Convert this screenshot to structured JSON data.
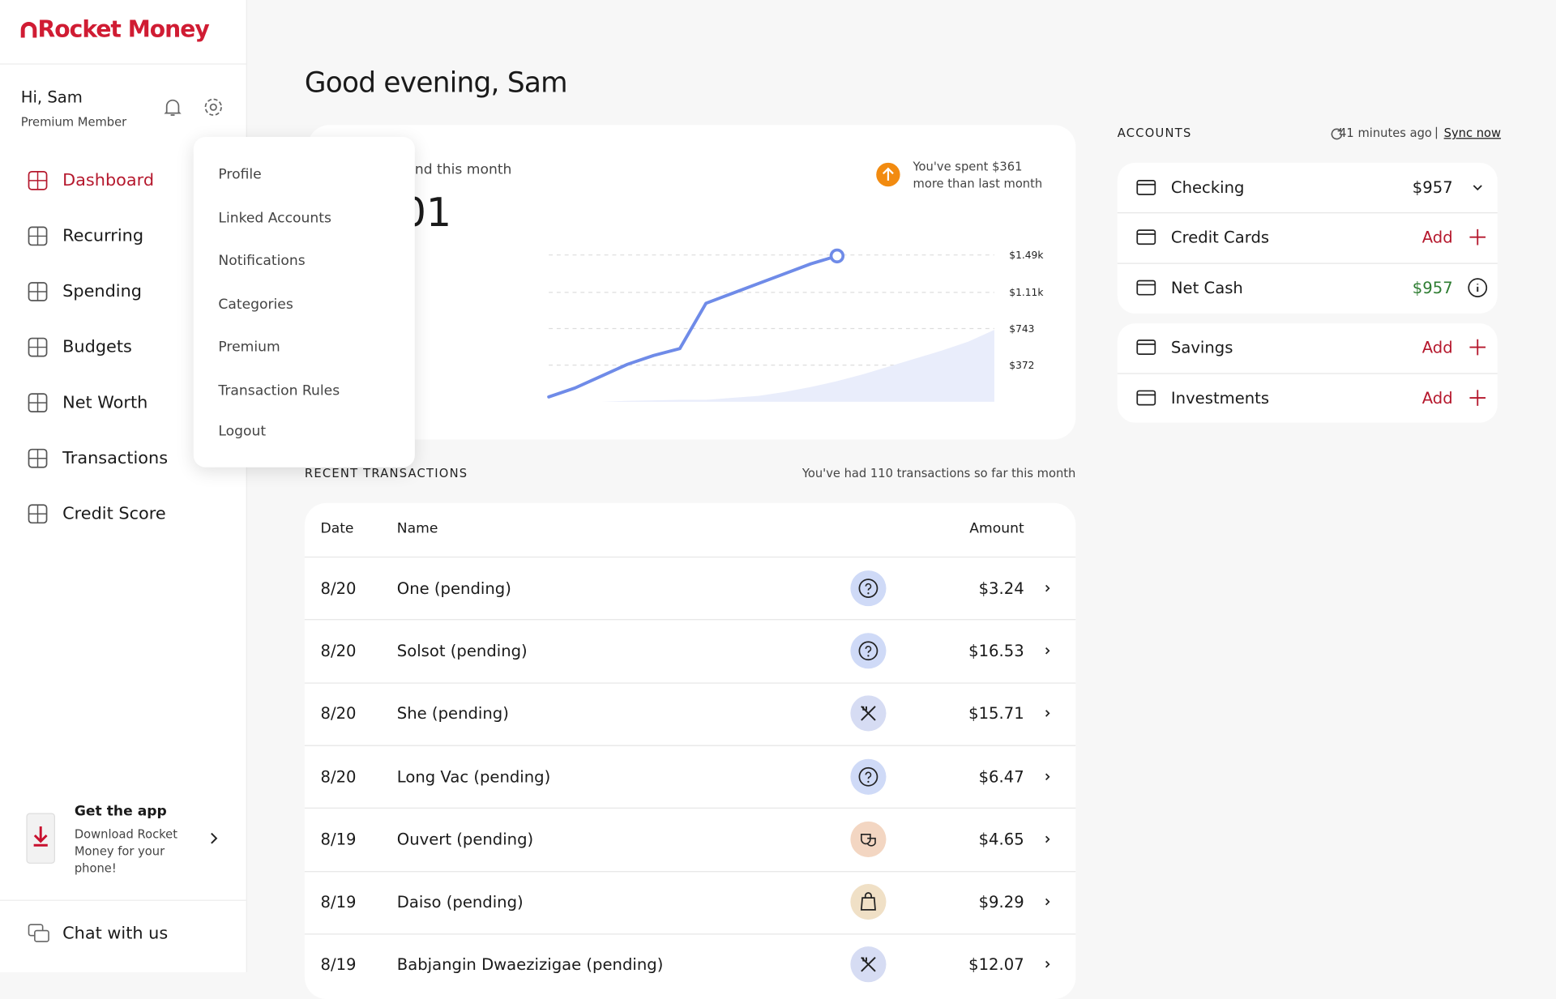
{
  "brand": "Rocket Money",
  "user": {
    "greeting": "Hi, Sam",
    "tier": "Premium Member"
  },
  "nav": [
    "Dashboard",
    "Recurring",
    "Spending",
    "Budgets",
    "Net Worth",
    "Transactions",
    "Credit Score"
  ],
  "menu": [
    "Profile",
    "Linked Accounts",
    "Notifications",
    "Categories",
    "Premium",
    "Transaction Rules",
    "Logout"
  ],
  "promo": {
    "title": "Get the app",
    "body": "Download Rocket Money for your phone!"
  },
  "chat": "Chat with us",
  "heading": "Good evening, Sam",
  "spend": {
    "label": "nd this month",
    "amount": "01",
    "note": "You've spent $361 more than last month"
  },
  "chart_data": {
    "type": "line",
    "series": [
      {
        "color": "#6f8be8",
        "values": [
          50,
          140,
          260,
          380,
          470,
          540,
          1000,
          1100,
          1200,
          1300,
          1400,
          1480
        ]
      },
      {
        "color": "#e9edfb",
        "values": [
          0,
          0,
          0,
          10,
          15,
          20,
          20,
          40,
          60,
          100,
          150,
          210,
          280,
          360,
          440,
          520,
          610,
          730
        ]
      }
    ],
    "ylim": [
      0,
      1490
    ],
    "yticks": [
      {
        "value": 1490,
        "label": "$1.49k"
      },
      {
        "value": 1110,
        "label": "$1.11k"
      },
      {
        "value": 743,
        "label": "$743"
      },
      {
        "value": 372,
        "label": "$372"
      }
    ],
    "grid": true
  },
  "transactions": {
    "title": "RECENT TRANSACTIONS",
    "summary": "You've had 110 transactions so far this month",
    "columns": [
      "Date",
      "Name",
      "Amount"
    ],
    "rows": [
      [
        "8/20",
        "One (pending)",
        "$3.24"
      ],
      [
        "8/20",
        "Solsot (pending)",
        "$16.53"
      ],
      [
        "8/20",
        "She (pending)",
        "$15.71"
      ],
      [
        "8/20",
        "Long Vac (pending)",
        "$6.47"
      ],
      [
        "8/19",
        "Ouvert (pending)",
        "$4.65"
      ],
      [
        "8/19",
        "Daiso (pending)",
        "$9.29"
      ],
      [
        "8/19",
        "Babjangin Dwaezizigae (pending)",
        "$12.07"
      ]
    ]
  },
  "accounts": {
    "title": "ACCOUNTS",
    "sync_age": "41 minutes ago",
    "sync_action": "Sync now",
    "items": [
      {
        "name": "Checking",
        "value": "$957"
      },
      {
        "name": "Credit Cards",
        "action": "Add"
      },
      {
        "name": "Net Cash",
        "value": "$957"
      },
      {
        "name": "Savings",
        "action": "Add"
      },
      {
        "name": "Investments",
        "action": "Add"
      }
    ]
  }
}
